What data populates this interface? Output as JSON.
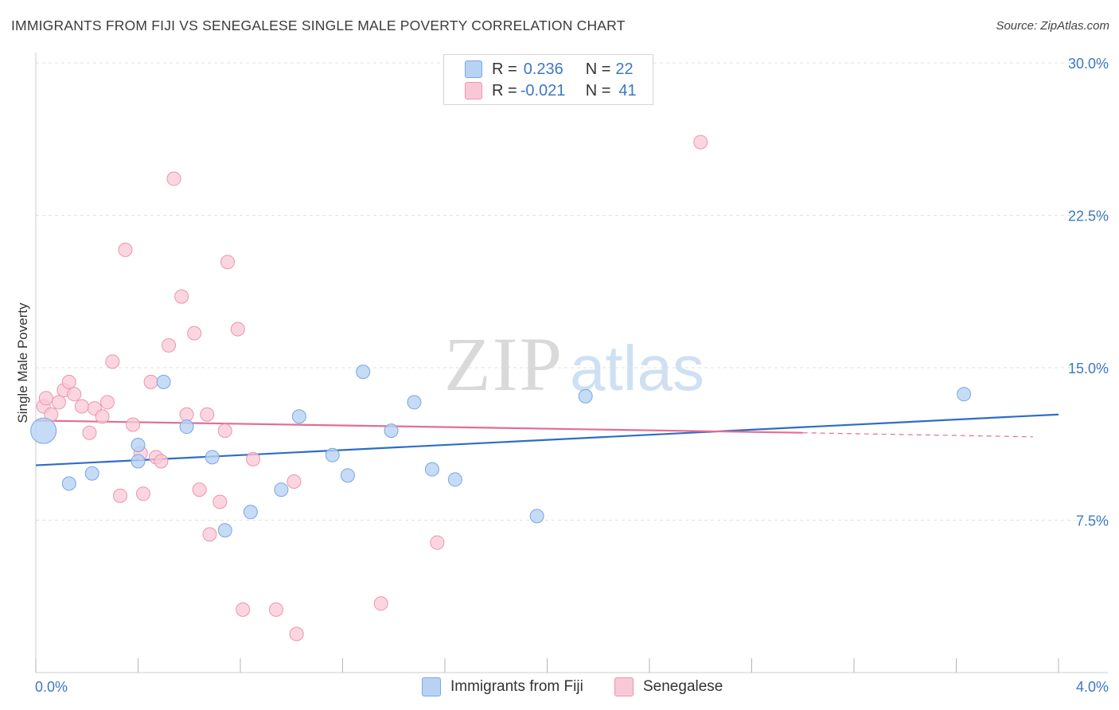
{
  "header": {
    "title": "IMMIGRANTS FROM FIJI VS SENEGALESE SINGLE MALE POVERTY CORRELATION CHART",
    "source": "Source: ZipAtlas.com"
  },
  "watermark": {
    "zip": "ZIP",
    "atlas": "atlas"
  },
  "legend_stats": {
    "fiji": {
      "r_label": "R = ",
      "r_value": "0.236",
      "n_label": "N = ",
      "n_value": "22"
    },
    "senegalese": {
      "r_label": "R = ",
      "r_value": "-0.021",
      "n_label": "N = ",
      "n_value": "41"
    }
  },
  "colors": {
    "fiji_fill": "#b8d2f4",
    "fiji_stroke": "#7aa6e0",
    "fiji_line": "#2e6cc8",
    "sen_fill": "#f9c8d6",
    "sen_stroke": "#ec94ad",
    "sen_line": "#e36d95",
    "tick_text": "#3d78c4",
    "grid": "#e2e2e2"
  },
  "chart_data": {
    "type": "scatter",
    "title": "IMMIGRANTS FROM FIJI VS SENEGALESE SINGLE MALE POVERTY CORRELATION CHART",
    "xlabel": "",
    "ylabel": "Single Male Poverty",
    "xlim": [
      0,
      4.0
    ],
    "ylim": [
      0,
      30.0
    ],
    "x_tick_labels": [
      "0.0%",
      "4.0%"
    ],
    "y_ticks": [
      7.5,
      15.0,
      22.5,
      30.0
    ],
    "y_tick_labels": [
      "7.5%",
      "15.0%",
      "22.5%",
      "30.0%"
    ],
    "grid": "horizontal dashed",
    "legend_position": "bottom-center",
    "series": [
      {
        "name": "Immigrants from Fiji",
        "trend": {
          "x": [
            0.0,
            4.0
          ],
          "y": [
            10.2,
            12.7
          ]
        },
        "points": [
          {
            "x": 0.03,
            "y": 11.9,
            "big": true
          },
          {
            "x": 0.13,
            "y": 9.3
          },
          {
            "x": 0.22,
            "y": 9.8
          },
          {
            "x": 0.4,
            "y": 10.4
          },
          {
            "x": 0.4,
            "y": 11.2
          },
          {
            "x": 0.5,
            "y": 14.3
          },
          {
            "x": 0.59,
            "y": 12.1
          },
          {
            "x": 0.69,
            "y": 10.6
          },
          {
            "x": 0.74,
            "y": 7.0
          },
          {
            "x": 0.84,
            "y": 7.9
          },
          {
            "x": 0.96,
            "y": 9.0
          },
          {
            "x": 1.03,
            "y": 12.6
          },
          {
            "x": 1.16,
            "y": 10.7
          },
          {
            "x": 1.22,
            "y": 9.7
          },
          {
            "x": 1.28,
            "y": 14.8
          },
          {
            "x": 1.39,
            "y": 11.9
          },
          {
            "x": 1.48,
            "y": 13.3
          },
          {
            "x": 1.55,
            "y": 10.0
          },
          {
            "x": 1.64,
            "y": 9.5
          },
          {
            "x": 1.96,
            "y": 7.7
          },
          {
            "x": 2.15,
            "y": 13.6
          },
          {
            "x": 3.63,
            "y": 13.7
          }
        ]
      },
      {
        "name": "Senegalese",
        "trend": {
          "x": [
            0.0,
            3.0
          ],
          "y": [
            12.4,
            11.8
          ]
        },
        "trend_dashed": {
          "x": [
            3.0,
            3.9
          ],
          "y": [
            11.8,
            11.6
          ]
        },
        "points": [
          {
            "x": 0.03,
            "y": 13.1
          },
          {
            "x": 0.04,
            "y": 13.5
          },
          {
            "x": 0.06,
            "y": 12.7
          },
          {
            "x": 0.09,
            "y": 13.3
          },
          {
            "x": 0.11,
            "y": 13.9
          },
          {
            "x": 0.13,
            "y": 14.3
          },
          {
            "x": 0.15,
            "y": 13.7
          },
          {
            "x": 0.18,
            "y": 13.1
          },
          {
            "x": 0.21,
            "y": 11.8
          },
          {
            "x": 0.23,
            "y": 13.0
          },
          {
            "x": 0.26,
            "y": 12.6
          },
          {
            "x": 0.28,
            "y": 13.3
          },
          {
            "x": 0.3,
            "y": 15.3
          },
          {
            "x": 0.33,
            "y": 8.7
          },
          {
            "x": 0.35,
            "y": 20.8
          },
          {
            "x": 0.38,
            "y": 12.2
          },
          {
            "x": 0.41,
            "y": 10.8
          },
          {
            "x": 0.42,
            "y": 8.8
          },
          {
            "x": 0.45,
            "y": 14.3
          },
          {
            "x": 0.47,
            "y": 10.6
          },
          {
            "x": 0.49,
            "y": 10.4
          },
          {
            "x": 0.52,
            "y": 16.1
          },
          {
            "x": 0.54,
            "y": 24.3
          },
          {
            "x": 0.57,
            "y": 18.5
          },
          {
            "x": 0.59,
            "y": 12.7
          },
          {
            "x": 0.62,
            "y": 16.7
          },
          {
            "x": 0.64,
            "y": 9.0
          },
          {
            "x": 0.67,
            "y": 12.7
          },
          {
            "x": 0.68,
            "y": 6.8
          },
          {
            "x": 0.72,
            "y": 8.4
          },
          {
            "x": 0.74,
            "y": 11.9
          },
          {
            "x": 0.75,
            "y": 20.2
          },
          {
            "x": 0.79,
            "y": 16.9
          },
          {
            "x": 0.81,
            "y": 3.1
          },
          {
            "x": 0.85,
            "y": 10.5
          },
          {
            "x": 0.94,
            "y": 3.1
          },
          {
            "x": 1.01,
            "y": 9.4
          },
          {
            "x": 1.02,
            "y": 1.9
          },
          {
            "x": 1.35,
            "y": 3.4
          },
          {
            "x": 1.57,
            "y": 6.4
          },
          {
            "x": 2.6,
            "y": 26.1
          }
        ]
      }
    ]
  }
}
